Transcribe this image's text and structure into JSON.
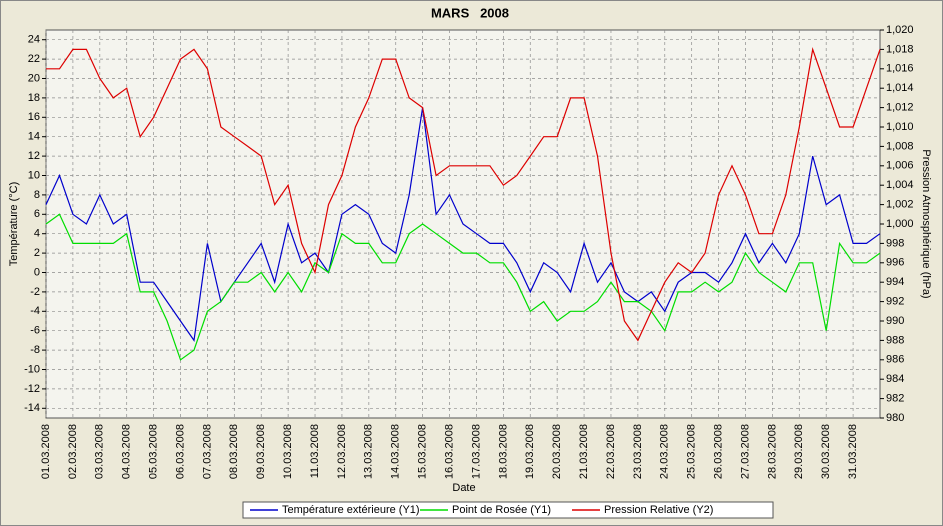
{
  "chart_data": {
    "type": "line",
    "title": "MARS   2008",
    "xlabel": "Date",
    "ylabel": "Température (°C)",
    "y2label": "Pression Atmosphérique (hPa)",
    "grid": true,
    "legend": "bottom",
    "xlim": [
      1,
      32
    ],
    "xticks": [
      {
        "value": 1,
        "label": "01.03.2008"
      },
      {
        "value": 2,
        "label": "02.03.2008"
      },
      {
        "value": 3,
        "label": "03.03.2008"
      },
      {
        "value": 4,
        "label": "04.03.2008"
      },
      {
        "value": 5,
        "label": "05.03.2008"
      },
      {
        "value": 6,
        "label": "06.03.2008"
      },
      {
        "value": 7,
        "label": "07.03.2008"
      },
      {
        "value": 8,
        "label": "08.03.2008"
      },
      {
        "value": 9,
        "label": "09.03.2008"
      },
      {
        "value": 10,
        "label": "10.03.2008"
      },
      {
        "value": 11,
        "label": "11.03.2008"
      },
      {
        "value": 12,
        "label": "12.03.2008"
      },
      {
        "value": 13,
        "label": "13.03.2008"
      },
      {
        "value": 14,
        "label": "14.03.2008"
      },
      {
        "value": 15,
        "label": "15.03.2008"
      },
      {
        "value": 16,
        "label": "16.03.2008"
      },
      {
        "value": 17,
        "label": "17.03.2008"
      },
      {
        "value": 18,
        "label": "18.03.2008"
      },
      {
        "value": 19,
        "label": "19.03.2008"
      },
      {
        "value": 20,
        "label": "20.03.2008"
      },
      {
        "value": 21,
        "label": "21.03.2008"
      },
      {
        "value": 22,
        "label": "22.03.2008"
      },
      {
        "value": 23,
        "label": "23.03.2008"
      },
      {
        "value": 24,
        "label": "24.03.2008"
      },
      {
        "value": 25,
        "label": "25.03.2008"
      },
      {
        "value": 26,
        "label": "26.03.2008"
      },
      {
        "value": 27,
        "label": "27.03.2008"
      },
      {
        "value": 28,
        "label": "28.03.2008"
      },
      {
        "value": 29,
        "label": "29.03.2008"
      },
      {
        "value": 30,
        "label": "30.03.2008"
      },
      {
        "value": 31,
        "label": "31.03.2008"
      }
    ],
    "ylim": [
      -15,
      25
    ],
    "yticks": [
      -14,
      -12,
      -10,
      -8,
      -6,
      -4,
      -2,
      0,
      2,
      4,
      6,
      8,
      10,
      12,
      14,
      16,
      18,
      20,
      22,
      24
    ],
    "y2lim": [
      980,
      1020
    ],
    "y2ticks": [
      980,
      982,
      984,
      986,
      988,
      990,
      992,
      994,
      996,
      998,
      {
        "value": 1000,
        "label": "1,000"
      },
      {
        "value": 1002,
        "label": "1,002"
      },
      {
        "value": 1004,
        "label": "1,004"
      },
      {
        "value": 1006,
        "label": "1,006"
      },
      {
        "value": 1008,
        "label": "1,008"
      },
      {
        "value": 1010,
        "label": "1,010"
      },
      {
        "value": 1012,
        "label": "1,012"
      },
      {
        "value": 1014,
        "label": "1,014"
      },
      {
        "value": 1016,
        "label": "1,016"
      },
      {
        "value": 1018,
        "label": "1,018"
      },
      {
        "value": 1020,
        "label": "1,020"
      }
    ],
    "x": [
      1,
      1.5,
      2,
      2.5,
      3,
      3.5,
      4,
      4.5,
      5,
      5.5,
      6,
      6.5,
      7,
      7.5,
      8,
      8.5,
      9,
      9.5,
      10,
      10.5,
      11,
      11.5,
      12,
      12.5,
      13,
      13.5,
      14,
      14.5,
      15,
      15.5,
      16,
      16.5,
      17,
      17.5,
      18,
      18.5,
      19,
      19.5,
      20,
      20.5,
      21,
      21.5,
      22,
      22.5,
      23,
      23.5,
      24,
      24.5,
      25,
      25.5,
      26,
      26.5,
      27,
      27.5,
      28,
      28.5,
      29,
      29.5,
      30,
      30.5,
      31,
      31.5,
      32
    ],
    "series": [
      {
        "name": "Température extérieure (Y1)",
        "color": "#0000cc",
        "values": [
          7,
          10,
          6,
          5,
          8,
          5,
          6,
          -1,
          -1,
          -3,
          -5,
          -7,
          3,
          -3,
          -1,
          1,
          3,
          -1,
          5,
          1,
          2,
          0,
          6,
          7,
          6,
          3,
          2,
          8,
          17,
          6,
          8,
          5,
          4,
          3,
          3,
          1,
          -2,
          1,
          0,
          -2,
          3,
          -1,
          1,
          -2,
          -3,
          -2,
          -4,
          -1,
          0,
          0,
          -1,
          1,
          4,
          1,
          3,
          1,
          4,
          12,
          7,
          8,
          3,
          3,
          4
        ]
      },
      {
        "name": "Point de Rosée (Y1)",
        "color": "#00dd00",
        "values": [
          5,
          6,
          3,
          3,
          3,
          3,
          4,
          -2,
          -2,
          -5,
          -9,
          -8,
          -4,
          -3,
          -1,
          -1,
          0,
          -2,
          0,
          -2,
          1,
          0,
          4,
          3,
          3,
          1,
          1,
          4,
          5,
          4,
          3,
          2,
          2,
          1,
          1,
          -1,
          -4,
          -3,
          -5,
          -4,
          -4,
          -3,
          -1,
          -3,
          -3,
          -4,
          -6,
          -2,
          -2,
          -1,
          -2,
          -1,
          2,
          0,
          -1,
          -2,
          1,
          1,
          -6,
          3,
          1,
          1,
          2
        ]
      },
      {
        "name": "Pression Relative (Y2)",
        "color": "#dd0000",
        "axis": "y2",
        "values": [
          1016,
          1016,
          1018,
          1018,
          1015,
          1013,
          1014,
          1009,
          1011,
          1014,
          1017,
          1018,
          1016,
          1010,
          1009,
          1008,
          1007,
          1002,
          1004,
          998,
          995,
          1002,
          1005,
          1010,
          1013,
          1017,
          1017,
          1013,
          1012,
          1005,
          1006,
          1006,
          1006,
          1006,
          1004,
          1005,
          1007,
          1009,
          1009,
          1013,
          1013,
          1007,
          997,
          990,
          988,
          991,
          994,
          996,
          995,
          997,
          1003,
          1006,
          1003,
          999,
          999,
          1003,
          1010,
          1018,
          1014,
          1010,
          1010,
          1014,
          1018
        ]
      }
    ]
  }
}
